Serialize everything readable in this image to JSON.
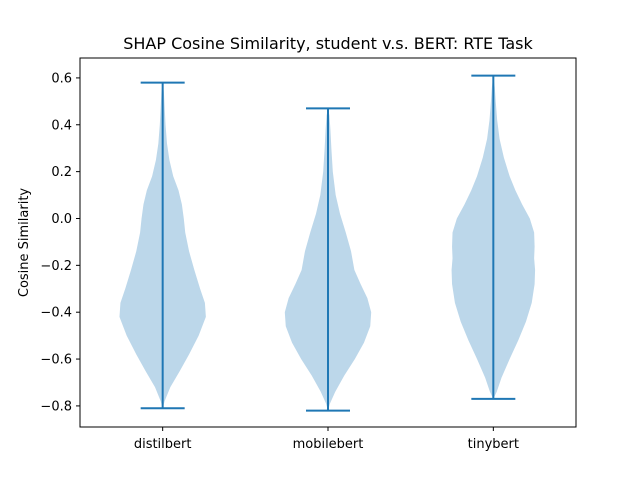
{
  "chart_data": {
    "type": "violin",
    "title": "SHAP Cosine Similarity, student v.s. BERT: RTE Task",
    "xlabel": "",
    "ylabel": "Cosine Similarity",
    "ylim": [
      -0.89,
      0.685
    ],
    "yticks": [
      -0.8,
      -0.6,
      -0.4,
      -0.2,
      0.0,
      0.2,
      0.4,
      0.6
    ],
    "ytick_labels": [
      "−0.8",
      "−0.6",
      "−0.4",
      "−0.2",
      "0.0",
      "0.2",
      "0.4",
      "0.6"
    ],
    "grid": false,
    "categories": [
      "distilbert",
      "mobilebert",
      "tinybert"
    ],
    "violins": [
      {
        "name": "distilbert",
        "min": -0.81,
        "max": 0.58,
        "profile": [
          [
            -0.81,
            0.0
          ],
          [
            -0.78,
            0.04
          ],
          [
            -0.72,
            0.16
          ],
          [
            -0.65,
            0.36
          ],
          [
            -0.58,
            0.55
          ],
          [
            -0.5,
            0.75
          ],
          [
            -0.42,
            0.9
          ],
          [
            -0.36,
            0.88
          ],
          [
            -0.3,
            0.78
          ],
          [
            -0.22,
            0.66
          ],
          [
            -0.14,
            0.55
          ],
          [
            -0.06,
            0.47
          ],
          [
            0.0,
            0.44
          ],
          [
            0.06,
            0.4
          ],
          [
            0.12,
            0.33
          ],
          [
            0.18,
            0.22
          ],
          [
            0.25,
            0.14
          ],
          [
            0.32,
            0.09
          ],
          [
            0.4,
            0.06
          ],
          [
            0.48,
            0.04
          ],
          [
            0.54,
            0.025
          ],
          [
            0.58,
            0.0
          ]
        ]
      },
      {
        "name": "mobilebert",
        "min": -0.82,
        "max": 0.47,
        "profile": [
          [
            -0.82,
            0.0
          ],
          [
            -0.79,
            0.04
          ],
          [
            -0.74,
            0.15
          ],
          [
            -0.67,
            0.34
          ],
          [
            -0.6,
            0.56
          ],
          [
            -0.53,
            0.75
          ],
          [
            -0.46,
            0.88
          ],
          [
            -0.4,
            0.9
          ],
          [
            -0.34,
            0.82
          ],
          [
            -0.28,
            0.68
          ],
          [
            -0.22,
            0.55
          ],
          [
            -0.14,
            0.48
          ],
          [
            -0.06,
            0.37
          ],
          [
            0.02,
            0.25
          ],
          [
            0.1,
            0.16
          ],
          [
            0.2,
            0.1
          ],
          [
            0.3,
            0.07
          ],
          [
            0.38,
            0.05
          ],
          [
            0.44,
            0.03
          ],
          [
            0.47,
            0.0
          ]
        ]
      },
      {
        "name": "tinybert",
        "min": -0.77,
        "max": 0.61,
        "profile": [
          [
            -0.77,
            0.0
          ],
          [
            -0.74,
            0.07
          ],
          [
            -0.68,
            0.17
          ],
          [
            -0.6,
            0.34
          ],
          [
            -0.52,
            0.52
          ],
          [
            -0.44,
            0.68
          ],
          [
            -0.36,
            0.8
          ],
          [
            -0.28,
            0.86
          ],
          [
            -0.22,
            0.87
          ],
          [
            -0.17,
            0.85
          ],
          [
            -0.12,
            0.86
          ],
          [
            -0.06,
            0.85
          ],
          [
            0.0,
            0.76
          ],
          [
            0.06,
            0.6
          ],
          [
            0.12,
            0.46
          ],
          [
            0.18,
            0.34
          ],
          [
            0.26,
            0.22
          ],
          [
            0.34,
            0.13
          ],
          [
            0.42,
            0.08
          ],
          [
            0.5,
            0.05
          ],
          [
            0.56,
            0.03
          ],
          [
            0.61,
            0.0
          ]
        ]
      }
    ],
    "colors": {
      "violin_fill": "#bcd7ea",
      "line": "#1f77b4",
      "axis": "#000000"
    }
  }
}
